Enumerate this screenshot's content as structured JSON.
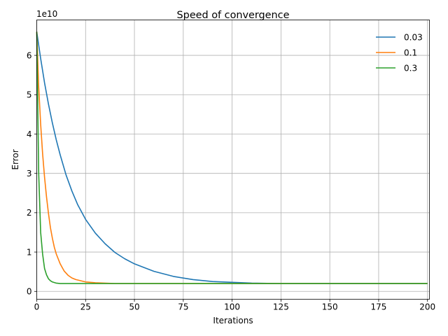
{
  "chart_data": {
    "type": "line",
    "title": "Speed of convergence",
    "xlabel": "Iterations",
    "ylabel": "Error",
    "y_offset_label": "1e10",
    "xlim": [
      0,
      201
    ],
    "ylim": [
      -0.2,
      6.9
    ],
    "x_ticks": [
      0,
      25,
      50,
      75,
      100,
      125,
      150,
      175,
      200
    ],
    "y_ticks": [
      0,
      1,
      2,
      3,
      4,
      5,
      6
    ],
    "grid": true,
    "legend_position": "top-right",
    "series": [
      {
        "name": "0.03",
        "color": "#1f77b4",
        "x": [
          0,
          2,
          4,
          6,
          8,
          10,
          12,
          15,
          18,
          21,
          25,
          30,
          35,
          40,
          45,
          50,
          60,
          70,
          80,
          90,
          100,
          110,
          125,
          150,
          175,
          200
        ],
        "values": [
          6.6,
          5.92,
          5.3,
          4.76,
          4.28,
          3.85,
          3.47,
          2.96,
          2.55,
          2.2,
          1.83,
          1.48,
          1.21,
          0.99,
          0.83,
          0.7,
          0.51,
          0.38,
          0.3,
          0.25,
          0.23,
          0.21,
          0.2,
          0.2,
          0.2,
          0.2
        ]
      },
      {
        "name": "0.1",
        "color": "#ff7f0e",
        "x": [
          0,
          1,
          2,
          3,
          4,
          5,
          6,
          7,
          8,
          9,
          10,
          12,
          14,
          16,
          18,
          20,
          25,
          30,
          40,
          50,
          75,
          100,
          150,
          200
        ],
        "values": [
          6.6,
          5.2,
          4.25,
          3.5,
          2.9,
          2.4,
          1.98,
          1.62,
          1.35,
          1.12,
          0.95,
          0.7,
          0.52,
          0.41,
          0.34,
          0.3,
          0.24,
          0.22,
          0.2,
          0.2,
          0.2,
          0.2,
          0.2,
          0.2
        ]
      },
      {
        "name": "0.3",
        "color": "#2ca02c",
        "x": [
          0,
          1,
          2,
          3,
          4,
          5,
          6,
          7,
          8,
          10,
          12,
          15,
          20,
          30,
          50,
          100,
          150,
          200
        ],
        "values": [
          6.6,
          3.0,
          1.5,
          0.95,
          0.58,
          0.42,
          0.32,
          0.27,
          0.24,
          0.21,
          0.2,
          0.2,
          0.2,
          0.2,
          0.2,
          0.2,
          0.2,
          0.2
        ]
      }
    ]
  }
}
